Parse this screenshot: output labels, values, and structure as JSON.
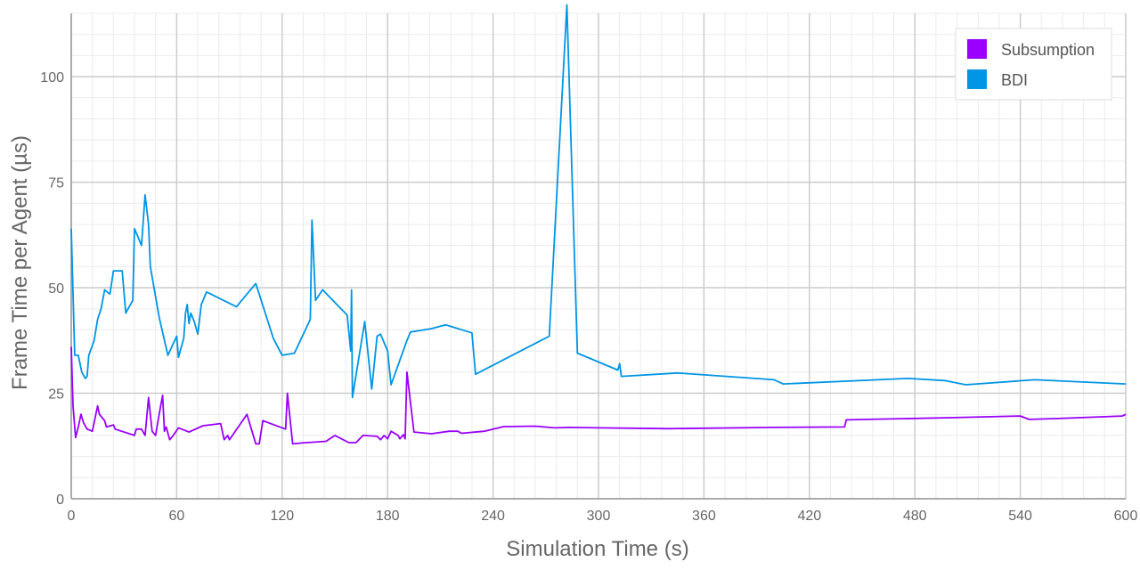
{
  "chart_data": {
    "type": "line",
    "title": "",
    "xlabel": "Simulation Time (s)",
    "ylabel": "Frame Time per Agent (µs)",
    "xlim": [
      0,
      600
    ],
    "ylim": [
      0,
      115
    ],
    "xticks": [
      0,
      60,
      120,
      180,
      240,
      300,
      360,
      420,
      480,
      540,
      600
    ],
    "yticks": [
      0,
      25,
      50,
      75,
      100
    ],
    "grid": true,
    "legend": "top-right",
    "series": [
      {
        "name": "Subsumption",
        "color": "#9900ff",
        "points": [
          [
            0,
            36
          ],
          [
            1,
            22
          ],
          [
            2.5,
            14.5
          ],
          [
            4,
            17
          ],
          [
            5.5,
            20
          ],
          [
            7,
            18
          ],
          [
            9,
            16.5
          ],
          [
            12,
            16
          ],
          [
            14,
            20
          ],
          [
            15,
            22
          ],
          [
            16,
            20
          ],
          [
            18,
            19
          ],
          [
            19,
            18.5
          ],
          [
            20,
            17
          ],
          [
            24,
            17.5
          ],
          [
            25,
            16.5
          ],
          [
            36,
            15
          ],
          [
            37,
            16.5
          ],
          [
            40,
            16.5
          ],
          [
            42,
            15
          ],
          [
            44,
            24
          ],
          [
            46,
            16
          ],
          [
            48,
            15
          ],
          [
            50,
            20
          ],
          [
            52,
            24.5
          ],
          [
            53,
            16
          ],
          [
            54,
            17
          ],
          [
            56,
            14
          ],
          [
            58,
            15
          ],
          [
            61,
            16.8
          ],
          [
            67,
            15.8
          ],
          [
            75,
            17.3
          ],
          [
            85,
            17.8
          ],
          [
            87,
            14
          ],
          [
            89,
            15
          ],
          [
            90,
            14
          ],
          [
            100,
            20
          ],
          [
            105,
            13
          ],
          [
            107,
            13
          ],
          [
            109,
            18.5
          ],
          [
            122,
            16.5
          ],
          [
            123,
            25
          ],
          [
            126,
            13
          ],
          [
            131,
            13.2
          ],
          [
            145,
            13.6
          ],
          [
            150,
            15
          ],
          [
            158,
            13.3
          ],
          [
            162,
            13.3
          ],
          [
            166,
            15
          ],
          [
            174,
            14.8
          ],
          [
            176,
            14
          ],
          [
            178,
            15
          ],
          [
            180,
            14.2
          ],
          [
            182,
            16
          ],
          [
            186,
            15
          ],
          [
            187,
            14.2
          ],
          [
            189,
            15.2
          ],
          [
            190,
            14.2
          ],
          [
            191,
            30
          ],
          [
            195,
            15.8
          ],
          [
            205,
            15.4
          ],
          [
            215,
            16
          ],
          [
            220,
            16
          ],
          [
            222,
            15.5
          ],
          [
            235,
            16
          ],
          [
            246,
            17.1
          ],
          [
            264,
            17.2
          ],
          [
            275,
            16.8
          ],
          [
            283,
            16.9
          ],
          [
            300,
            16.8
          ],
          [
            340,
            16.6
          ],
          [
            400,
            16.9
          ],
          [
            440,
            17
          ],
          [
            441,
            18.7
          ],
          [
            500,
            19.2
          ],
          [
            540,
            19.6
          ],
          [
            545,
            18.8
          ],
          [
            560,
            19
          ],
          [
            598,
            19.6
          ],
          [
            600,
            20
          ]
        ]
      },
      {
        "name": "BDI",
        "color": "#0095e5",
        "points": [
          [
            0,
            64
          ],
          [
            2,
            34
          ],
          [
            4,
            34
          ],
          [
            6,
            30
          ],
          [
            8,
            28.5
          ],
          [
            9,
            29
          ],
          [
            10,
            34
          ],
          [
            13,
            37.5
          ],
          [
            15,
            42.5
          ],
          [
            17,
            45
          ],
          [
            19,
            49.5
          ],
          [
            22,
            48.5
          ],
          [
            24,
            54
          ],
          [
            27,
            54
          ],
          [
            29,
            54
          ],
          [
            31,
            44
          ],
          [
            33,
            45.5
          ],
          [
            35,
            47
          ],
          [
            36,
            64
          ],
          [
            40,
            60
          ],
          [
            42,
            72
          ],
          [
            44,
            65
          ],
          [
            45,
            55
          ],
          [
            50,
            43
          ],
          [
            55,
            34
          ],
          [
            60,
            38.5
          ],
          [
            61,
            33.5
          ],
          [
            64,
            38
          ],
          [
            65,
            44
          ],
          [
            66,
            46
          ],
          [
            67,
            41.5
          ],
          [
            68,
            44
          ],
          [
            70,
            42
          ],
          [
            72,
            39
          ],
          [
            74,
            46
          ],
          [
            77,
            49
          ],
          [
            94,
            45.5
          ],
          [
            97,
            47
          ],
          [
            105,
            51
          ],
          [
            115,
            38
          ],
          [
            120,
            34
          ],
          [
            127,
            34.5
          ],
          [
            136,
            42.5
          ],
          [
            137,
            66
          ],
          [
            139,
            47
          ],
          [
            143,
            49.5
          ],
          [
            157,
            43.5
          ],
          [
            159,
            35
          ],
          [
            159.5,
            49.5
          ],
          [
            160,
            24
          ],
          [
            167,
            42
          ],
          [
            171,
            26
          ],
          [
            174,
            38.5
          ],
          [
            176,
            39
          ],
          [
            180,
            35
          ],
          [
            182,
            27
          ],
          [
            191,
            37.5
          ],
          [
            193,
            39.5
          ],
          [
            205,
            40.3
          ],
          [
            213,
            41.2
          ],
          [
            228,
            39.3
          ],
          [
            230,
            29.5
          ],
          [
            272,
            38.5
          ],
          [
            282,
            117
          ],
          [
            288,
            34.5
          ],
          [
            311,
            30.5
          ],
          [
            312,
            32
          ],
          [
            313,
            29
          ],
          [
            345,
            29.8
          ],
          [
            400,
            28.2
          ],
          [
            405,
            27.2
          ],
          [
            476,
            28.5
          ],
          [
            497,
            28
          ],
          [
            509,
            27
          ],
          [
            548,
            28.2
          ],
          [
            600,
            27.2
          ]
        ]
      }
    ]
  }
}
